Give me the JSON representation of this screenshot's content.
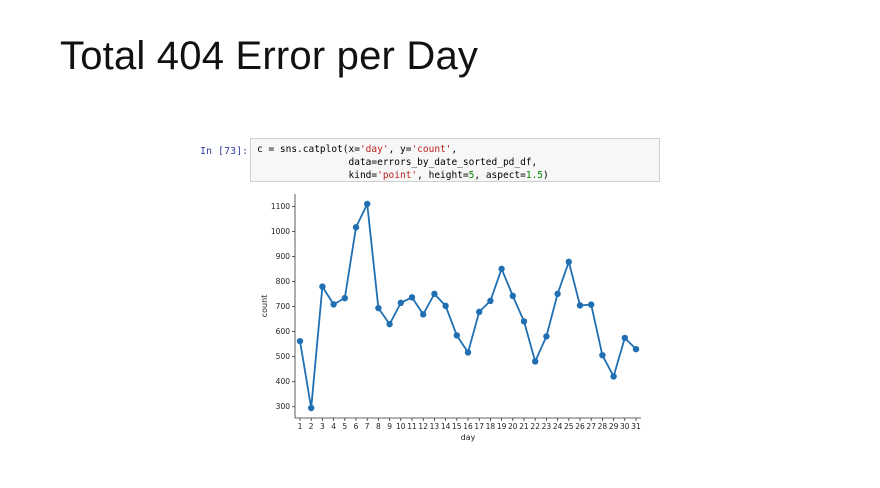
{
  "slide": {
    "title": "Total 404 Error per Day"
  },
  "cell": {
    "prompt": "In [73]:",
    "code_lines": [
      [
        {
          "t": "c = sns.catplot(x="
        },
        {
          "t": "'day'",
          "c": "str"
        },
        {
          "t": ", y="
        },
        {
          "t": "'count'",
          "c": "str"
        },
        {
          "t": ","
        }
      ],
      [
        {
          "t": "                data=errors_by_date_sorted_pd_df,"
        }
      ],
      [
        {
          "t": "                kind="
        },
        {
          "t": "'point'",
          "c": "str"
        },
        {
          "t": ", height="
        },
        {
          "t": "5",
          "c": "num"
        },
        {
          "t": ", aspect="
        },
        {
          "t": "1.5",
          "c": "num"
        },
        {
          "t": ")"
        }
      ]
    ]
  },
  "chart_data": {
    "type": "line",
    "xlabel": "day",
    "ylabel": "count",
    "categories": [
      "1",
      "2",
      "3",
      "4",
      "5",
      "6",
      "7",
      "8",
      "9",
      "10",
      "11",
      "12",
      "13",
      "14",
      "15",
      "16",
      "17",
      "18",
      "19",
      "20",
      "21",
      "22",
      "23",
      "24",
      "25",
      "26",
      "27",
      "28",
      "29",
      "30",
      "31"
    ],
    "values": [
      562,
      295,
      780,
      709,
      734,
      1017,
      1110,
      694,
      630,
      715,
      737,
      669,
      751,
      703,
      585,
      517,
      679,
      723,
      851,
      743,
      641,
      481,
      581,
      751,
      879,
      705,
      708,
      506,
      421,
      575,
      530
    ],
    "ylim": [
      255,
      1150
    ],
    "yticks": [
      300,
      400,
      500,
      600,
      700,
      800,
      900,
      1000,
      1100
    ],
    "color": "#1f6fb2",
    "grid": false,
    "markers": true
  }
}
